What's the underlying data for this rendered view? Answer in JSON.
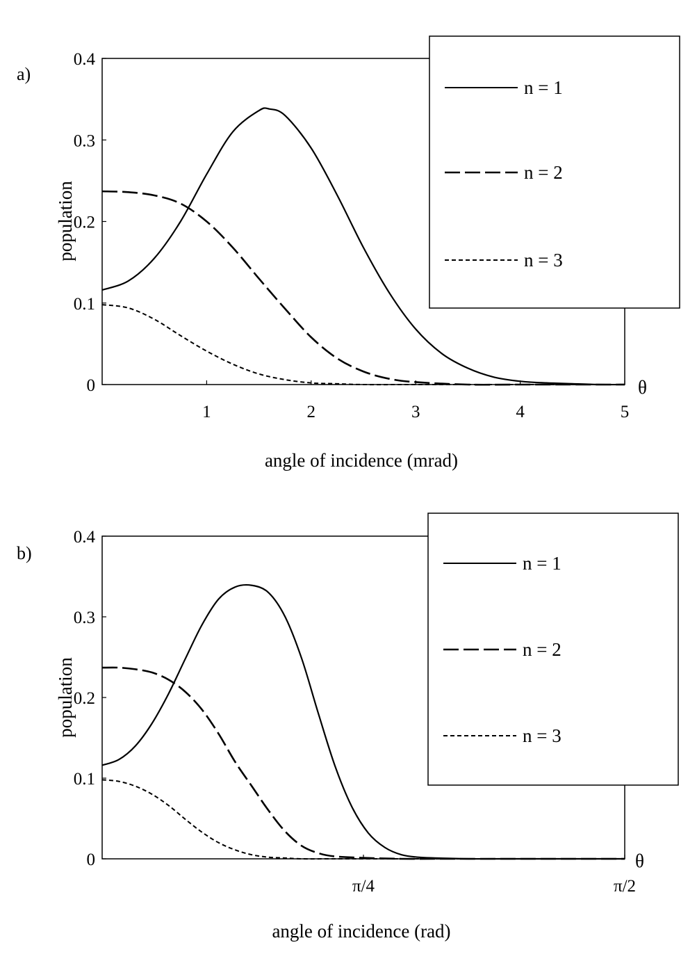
{
  "chart_data": [
    {
      "panel_label": "a)",
      "type": "line",
      "xlabel": "angle of incidence (mrad)",
      "ylabel": "population",
      "axis_end_label": "θ",
      "xlim": [
        0,
        5
      ],
      "ylim": [
        0,
        0.4
      ],
      "xticks": [
        {
          "value": 1,
          "label": "1"
        },
        {
          "value": 2,
          "label": "2"
        },
        {
          "value": 3,
          "label": "3"
        },
        {
          "value": 4,
          "label": "4"
        },
        {
          "value": 5,
          "label": "5"
        }
      ],
      "yticks": [
        {
          "value": 0,
          "label": "0"
        },
        {
          "value": 0.1,
          "label": "0.1"
        },
        {
          "value": 0.2,
          "label": "0.2"
        },
        {
          "value": 0.3,
          "label": "0.3"
        },
        {
          "value": 0.4,
          "label": "0.4"
        }
      ],
      "series": [
        {
          "name": "n = 1",
          "style": "solid",
          "x": [
            0,
            0.25,
            0.5,
            0.75,
            1.0,
            1.25,
            1.5,
            1.6,
            1.75,
            2.0,
            2.25,
            2.5,
            2.75,
            3.0,
            3.25,
            3.5,
            3.75,
            4.0,
            4.25,
            4.5,
            4.75,
            5.0
          ],
          "y": [
            0.116,
            0.127,
            0.155,
            0.2,
            0.258,
            0.31,
            0.336,
            0.338,
            0.33,
            0.29,
            0.232,
            0.168,
            0.112,
            0.068,
            0.038,
            0.02,
            0.009,
            0.004,
            0.002,
            0.001,
            0.0,
            0.0
          ]
        },
        {
          "name": "n = 2",
          "style": "dashed",
          "x": [
            0,
            0.25,
            0.5,
            0.75,
            1.0,
            1.25,
            1.5,
            1.75,
            2.0,
            2.25,
            2.5,
            2.75,
            3.0,
            3.5,
            4.0,
            5.0
          ],
          "y": [
            0.237,
            0.236,
            0.232,
            0.222,
            0.2,
            0.168,
            0.13,
            0.093,
            0.058,
            0.032,
            0.016,
            0.007,
            0.003,
            0.0,
            0.0,
            0.0
          ]
        },
        {
          "name": "n = 3",
          "style": "dotted",
          "x": [
            0,
            0.25,
            0.5,
            0.75,
            1.0,
            1.25,
            1.5,
            1.75,
            2.0,
            2.25,
            2.5,
            3.0,
            4.0,
            5.0
          ],
          "y": [
            0.098,
            0.094,
            0.08,
            0.06,
            0.041,
            0.025,
            0.013,
            0.006,
            0.002,
            0.001,
            0.0,
            0.0,
            0.0,
            0.0
          ]
        }
      ],
      "legend": "top-right"
    },
    {
      "panel_label": "b)",
      "type": "line",
      "xlabel": "angle of incidence (rad)",
      "ylabel": "population",
      "axis_end_label": "θ",
      "xlim": [
        0,
        1.5708
      ],
      "ylim": [
        0,
        0.4
      ],
      "xticks": [
        {
          "value": 0.7854,
          "label": "π/4"
        },
        {
          "value": 1.5708,
          "label": "π/2"
        }
      ],
      "yticks": [
        {
          "value": 0,
          "label": "0"
        },
        {
          "value": 0.1,
          "label": "0.1"
        },
        {
          "value": 0.2,
          "label": "0.2"
        },
        {
          "value": 0.3,
          "label": "0.3"
        },
        {
          "value": 0.4,
          "label": "0.4"
        }
      ],
      "series": [
        {
          "name": "n = 1",
          "style": "solid",
          "x": [
            0,
            0.05,
            0.1,
            0.15,
            0.2,
            0.25,
            0.3,
            0.35,
            0.4,
            0.45,
            0.5,
            0.55,
            0.6,
            0.65,
            0.7,
            0.75,
            0.8,
            0.85,
            0.9,
            0.95,
            1.0,
            1.1,
            1.2,
            1.5708
          ],
          "y": [
            0.116,
            0.123,
            0.14,
            0.168,
            0.205,
            0.248,
            0.29,
            0.322,
            0.337,
            0.339,
            0.33,
            0.3,
            0.248,
            0.18,
            0.115,
            0.065,
            0.032,
            0.014,
            0.005,
            0.002,
            0.001,
            0.0,
            0.0,
            0.0
          ]
        },
        {
          "name": "n = 2",
          "style": "dashed",
          "x": [
            0,
            0.05,
            0.1,
            0.15,
            0.2,
            0.25,
            0.3,
            0.35,
            0.4,
            0.45,
            0.5,
            0.55,
            0.6,
            0.65,
            0.7,
            0.8,
            0.9,
            1.0,
            1.2,
            1.5708
          ],
          "y": [
            0.237,
            0.237,
            0.235,
            0.231,
            0.222,
            0.207,
            0.185,
            0.155,
            0.12,
            0.09,
            0.06,
            0.034,
            0.016,
            0.007,
            0.003,
            0.001,
            0.0,
            0.0,
            0.0,
            0.0
          ]
        },
        {
          "name": "n = 3",
          "style": "dotted",
          "x": [
            0,
            0.05,
            0.1,
            0.15,
            0.2,
            0.25,
            0.3,
            0.35,
            0.4,
            0.45,
            0.5,
            0.55,
            0.6,
            0.7,
            0.8,
            1.0,
            1.5708
          ],
          "y": [
            0.098,
            0.096,
            0.09,
            0.08,
            0.066,
            0.049,
            0.033,
            0.02,
            0.011,
            0.005,
            0.002,
            0.001,
            0.0,
            0.0,
            0.0,
            0.0,
            0.0
          ]
        }
      ],
      "legend": "top-right"
    }
  ]
}
